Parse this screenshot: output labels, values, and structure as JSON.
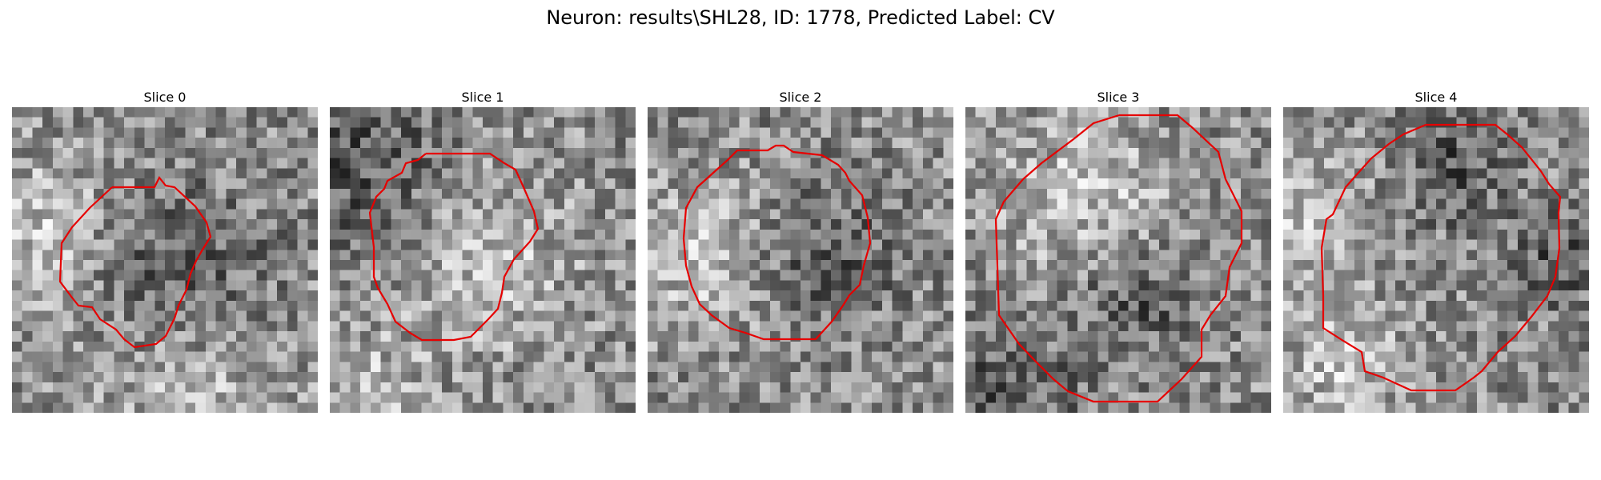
{
  "figure": {
    "title": "Neuron: results\\SHL28, ID: 1778, Predicted Label: CV",
    "outline_color": "#e60000",
    "colormap": "gray",
    "slices": [
      {
        "label": "Slice 0"
      },
      {
        "label": "Slice 1"
      },
      {
        "label": "Slice 2"
      },
      {
        "label": "Slice 3"
      },
      {
        "label": "Slice 4"
      }
    ]
  }
}
